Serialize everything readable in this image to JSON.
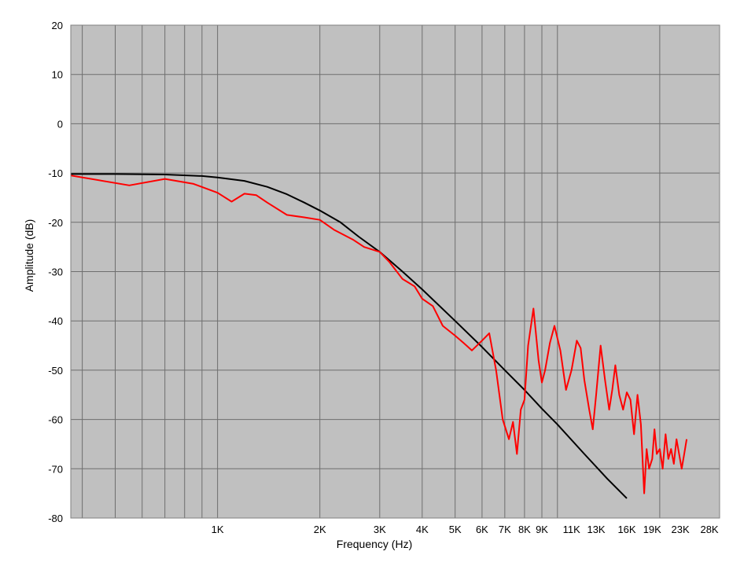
{
  "chart_data": {
    "type": "line",
    "title": "",
    "xlabel": "Frequency (Hz)",
    "ylabel": "Amplitude (dB)",
    "x_scale": "log",
    "xlim": [
      370,
      30000
    ],
    "ylim": [
      -80,
      20
    ],
    "y_ticks": [
      20,
      10,
      0,
      -10,
      -20,
      -30,
      -40,
      -50,
      -60,
      -70,
      -80
    ],
    "y_tick_labels": [
      "20",
      "10",
      "0",
      "-10",
      "-20",
      "-30",
      "-40",
      "-50",
      "-60",
      "-70",
      "-80"
    ],
    "x_ticks": [
      {
        "value": 1000,
        "label": "1K"
      },
      {
        "value": 2000,
        "label": "2K"
      },
      {
        "value": 3000,
        "label": "3K"
      },
      {
        "value": 4000,
        "label": "4K"
      },
      {
        "value": 5000,
        "label": "5K"
      },
      {
        "value": 6000,
        "label": "6K"
      },
      {
        "value": 7000,
        "label": "7K"
      },
      {
        "value": 8000,
        "label": "8K"
      },
      {
        "value": 9000,
        "label": "9K"
      },
      {
        "value": 11000,
        "label": "11K"
      },
      {
        "value": 13000,
        "label": "13K"
      },
      {
        "value": 16000,
        "label": "16K"
      },
      {
        "value": 19000,
        "label": "19K"
      },
      {
        "value": 23000,
        "label": "23K"
      },
      {
        "value": 28000,
        "label": "28K"
      }
    ],
    "grid": true,
    "plot_background": "#c0c0c0",
    "series": [
      {
        "color": "#000000",
        "x": [
          370,
          500,
          700,
          900,
          1000,
          1200,
          1400,
          1600,
          1800,
          2000,
          2300,
          2600,
          3000,
          3500,
          4000,
          5000,
          6000,
          7000,
          8000,
          9000,
          10000,
          12000,
          14000,
          16000
        ],
        "y": [
          -10.2,
          -10.2,
          -10.3,
          -10.6,
          -10.9,
          -11.6,
          -12.8,
          -14.3,
          -16.0,
          -17.6,
          -20.0,
          -22.9,
          -26.0,
          -30.0,
          -33.6,
          -40.0,
          -45.3,
          -50.0,
          -54.0,
          -57.8,
          -61.0,
          -67.0,
          -72.0,
          -76.0
        ]
      },
      {
        "color": "#ff0000",
        "x": [
          370,
          550,
          700,
          850,
          1000,
          1100,
          1200,
          1300,
          1400,
          1600,
          1800,
          2000,
          2200,
          2500,
          2700,
          3000,
          3200,
          3500,
          3800,
          4000,
          4300,
          4600,
          5000,
          5300,
          5600,
          6000,
          6300,
          6600,
          6900,
          7200,
          7400,
          7600,
          7800,
          8000,
          8200,
          8500,
          8800,
          9000,
          9200,
          9500,
          9800,
          10200,
          10600,
          11000,
          11400,
          11700,
          12000,
          12400,
          12700,
          13000,
          13400,
          13800,
          14200,
          14500,
          14800,
          15200,
          15600,
          16000,
          16400,
          16800,
          17200,
          17600,
          18000,
          18300,
          18600,
          19000,
          19300,
          19600,
          20000,
          20400,
          20800,
          21200,
          21600,
          22000,
          22400,
          22800,
          23200,
          23600,
          24000
        ],
        "y": [
          -10.5,
          -12.5,
          -11.2,
          -12.2,
          -14.0,
          -15.8,
          -14.2,
          -14.5,
          -16.0,
          -18.5,
          -19.0,
          -19.5,
          -21.5,
          -23.5,
          -25.0,
          -26.0,
          -28.0,
          -31.5,
          -33.0,
          -35.5,
          -37.0,
          -41.0,
          -43.0,
          -44.5,
          -46.0,
          -44.0,
          -42.5,
          -50.0,
          -60.0,
          -64.0,
          -60.5,
          -67.0,
          -58.0,
          -56.0,
          -45.0,
          -37.5,
          -48.0,
          -52.5,
          -50.0,
          -44.5,
          -41.0,
          -46.0,
          -54.0,
          -50.0,
          -44.0,
          -45.5,
          -52.0,
          -58.0,
          -62.0,
          -55.0,
          -45.0,
          -52.0,
          -58.0,
          -54.0,
          -49.0,
          -55.0,
          -58.0,
          -54.5,
          -56.0,
          -63.0,
          -55.0,
          -61.0,
          -75.0,
          -66.0,
          -70.0,
          -68.0,
          -62.0,
          -67.0,
          -66.0,
          -70.0,
          -63.0,
          -68.0,
          -66.0,
          -69.0,
          -64.0,
          -67.0,
          -70.0,
          -67.0,
          -64.0
        ]
      }
    ]
  }
}
